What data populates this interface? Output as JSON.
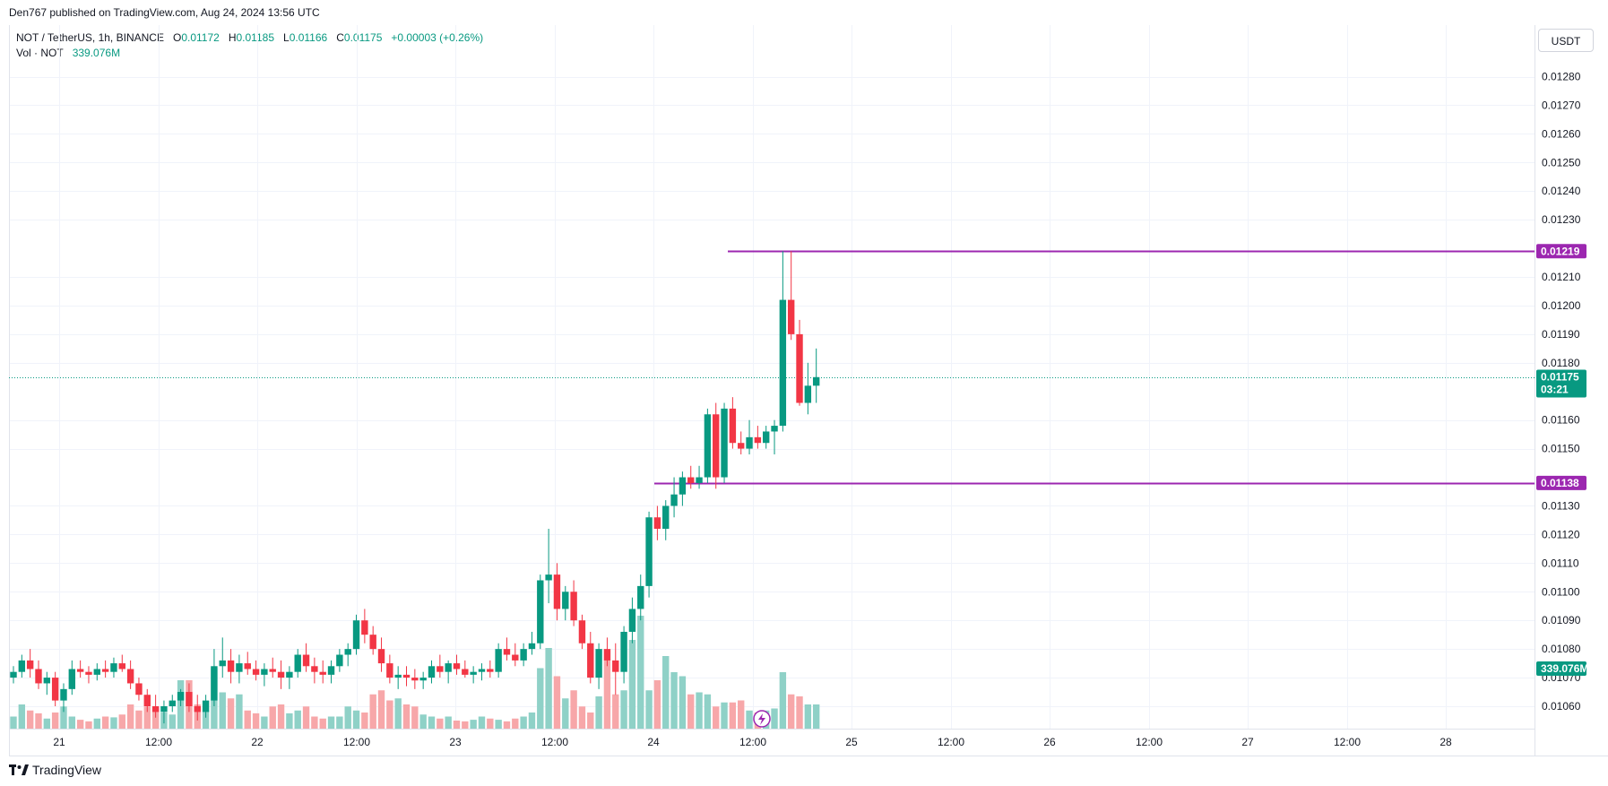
{
  "header": {
    "published": "Den767 published on TradingView.com, Aug 24, 2024 13:56 UTC",
    "symbol": "NOT / TetherUS, 1h, BINANCE",
    "o_label": "O",
    "o_value": "0.01172",
    "h_label": "H",
    "h_value": "0.01185",
    "l_label": "L",
    "l_value": "0.01166",
    "c_label": "C",
    "c_value": "0.01175",
    "change": "+0.00003 (+0.26%)",
    "vol_label": "Vol · NOT",
    "vol_value": "339.076M"
  },
  "currency": "USDT",
  "brand": "TradingView",
  "colors": {
    "up": "#089981",
    "down": "#f23645",
    "vol_up": "#8fd1c7",
    "vol_down": "#f7a7a9",
    "level_line": "#9c27b0",
    "grid": "#f0f3fa",
    "price_line": "#089981"
  },
  "chart_data": {
    "type": "candlestick",
    "symbol": "NOT / TetherUS",
    "interval": "1h",
    "ylim": [
      0.01055,
      0.01285
    ],
    "y_ticks": [
      "0.01280",
      "0.01270",
      "0.01260",
      "0.01250",
      "0.01240",
      "0.01230",
      "0.01210",
      "0.01200",
      "0.01190",
      "0.01180",
      "0.01160",
      "0.01150",
      "0.01130",
      "0.01120",
      "0.01110",
      "0.01100",
      "0.01090",
      "0.01080",
      "0.01070",
      "0.01060"
    ],
    "x_ticks": [
      "21",
      "12:00",
      "22",
      "12:00",
      "23",
      "12:00",
      "24",
      "12:00",
      "25",
      "12:00",
      "26",
      "12:00",
      "27",
      "12:00",
      "28"
    ],
    "price_levels": [
      {
        "value": 0.01219,
        "label": "0.01219"
      },
      {
        "value": 0.01138,
        "label": "0.01138"
      }
    ],
    "last_price": {
      "value": 0.01175,
      "label": "0.01175",
      "countdown": "03:21"
    },
    "last_volume": {
      "label": "339.076M",
      "value": 339.076
    },
    "candles": [
      [
        0.0107,
        0.01074,
        0.01068,
        0.01072
      ],
      [
        0.01072,
        0.01078,
        0.0107,
        0.01076
      ],
      [
        0.01076,
        0.0108,
        0.0107,
        0.01073
      ],
      [
        0.01073,
        0.01076,
        0.01066,
        0.01068
      ],
      [
        0.01068,
        0.01072,
        0.01064,
        0.0107
      ],
      [
        0.0107,
        0.01072,
        0.0106,
        0.01062
      ],
      [
        0.01062,
        0.01068,
        0.01058,
        0.01066
      ],
      [
        0.01066,
        0.01076,
        0.01064,
        0.01073
      ],
      [
        0.01073,
        0.01076,
        0.0107,
        0.01072
      ],
      [
        0.01072,
        0.01074,
        0.01068,
        0.01071
      ],
      [
        0.01071,
        0.01075,
        0.01069,
        0.01073
      ],
      [
        0.01073,
        0.01076,
        0.0107,
        0.01072
      ],
      [
        0.01072,
        0.01077,
        0.0107,
        0.01075
      ],
      [
        0.01075,
        0.01078,
        0.01072,
        0.01073
      ],
      [
        0.01073,
        0.01076,
        0.01066,
        0.01068
      ],
      [
        0.01068,
        0.0107,
        0.01062,
        0.01064
      ],
      [
        0.01064,
        0.01066,
        0.01058,
        0.0106
      ],
      [
        0.0106,
        0.01064,
        0.01056,
        0.01058
      ],
      [
        0.01058,
        0.01062,
        0.01054,
        0.0106
      ],
      [
        0.0106,
        0.01064,
        0.01058,
        0.01062
      ],
      [
        0.01062,
        0.01066,
        0.0106,
        0.01065
      ],
      [
        0.01065,
        0.01068,
        0.01058,
        0.0106
      ],
      [
        0.0106,
        0.01064,
        0.01055,
        0.01058
      ],
      [
        0.01058,
        0.01064,
        0.01056,
        0.01062
      ],
      [
        0.01062,
        0.0108,
        0.0106,
        0.01074
      ],
      [
        0.01074,
        0.01084,
        0.0107,
        0.01076
      ],
      [
        0.01076,
        0.0108,
        0.01068,
        0.01072
      ],
      [
        0.01072,
        0.01078,
        0.01068,
        0.01075
      ],
      [
        0.01075,
        0.01079,
        0.01071,
        0.01073
      ],
      [
        0.01073,
        0.01076,
        0.01069,
        0.01071
      ],
      [
        0.01071,
        0.01075,
        0.01067,
        0.01073
      ],
      [
        0.01073,
        0.01077,
        0.0107,
        0.01072
      ],
      [
        0.01072,
        0.01076,
        0.01066,
        0.0107
      ],
      [
        0.0107,
        0.01074,
        0.01066,
        0.01072
      ],
      [
        0.01072,
        0.0108,
        0.0107,
        0.01078
      ],
      [
        0.01078,
        0.01082,
        0.01072,
        0.01074
      ],
      [
        0.01074,
        0.01077,
        0.01068,
        0.01072
      ],
      [
        0.01072,
        0.01076,
        0.01068,
        0.01071
      ],
      [
        0.01071,
        0.01076,
        0.01068,
        0.01074
      ],
      [
        0.01074,
        0.0108,
        0.01072,
        0.01078
      ],
      [
        0.01078,
        0.01082,
        0.01074,
        0.0108
      ],
      [
        0.0108,
        0.01092,
        0.01078,
        0.0109
      ],
      [
        0.0109,
        0.01094,
        0.01082,
        0.01085
      ],
      [
        0.01085,
        0.01088,
        0.01078,
        0.0108
      ],
      [
        0.0108,
        0.01084,
        0.01072,
        0.01075
      ],
      [
        0.01075,
        0.01078,
        0.01068,
        0.0107
      ],
      [
        0.0107,
        0.01074,
        0.01066,
        0.01071
      ],
      [
        0.01071,
        0.01074,
        0.01067,
        0.0107
      ],
      [
        0.0107,
        0.01073,
        0.01066,
        0.01069
      ],
      [
        0.01069,
        0.01072,
        0.01066,
        0.0107
      ],
      [
        0.0107,
        0.01076,
        0.01068,
        0.01074
      ],
      [
        0.01074,
        0.01078,
        0.0107,
        0.01072
      ],
      [
        0.01072,
        0.01076,
        0.01068,
        0.01075
      ],
      [
        0.01075,
        0.01078,
        0.01071,
        0.01073
      ],
      [
        0.01073,
        0.01076,
        0.0107,
        0.01071
      ],
      [
        0.01071,
        0.01074,
        0.01068,
        0.01072
      ],
      [
        0.01072,
        0.01075,
        0.01069,
        0.01073
      ],
      [
        0.01073,
        0.01076,
        0.0107,
        0.01072
      ],
      [
        0.01072,
        0.01082,
        0.0107,
        0.0108
      ],
      [
        0.0108,
        0.01084,
        0.01076,
        0.01078
      ],
      [
        0.01078,
        0.01082,
        0.01074,
        0.01076
      ],
      [
        0.01076,
        0.01082,
        0.01074,
        0.0108
      ],
      [
        0.0108,
        0.01086,
        0.01078,
        0.01082
      ],
      [
        0.01082,
        0.01106,
        0.0108,
        0.01104
      ],
      [
        0.01104,
        0.01122,
        0.01096,
        0.01106
      ],
      [
        0.01106,
        0.0111,
        0.0109,
        0.01094
      ],
      [
        0.01094,
        0.01102,
        0.0109,
        0.011
      ],
      [
        0.011,
        0.01104,
        0.01088,
        0.0109
      ],
      [
        0.0109,
        0.01092,
        0.0108,
        0.01082
      ],
      [
        0.01082,
        0.01086,
        0.01068,
        0.0107
      ],
      [
        0.0107,
        0.01082,
        0.01066,
        0.0108
      ],
      [
        0.0108,
        0.01084,
        0.01074,
        0.01076
      ],
      [
        0.01076,
        0.01082,
        0.01064,
        0.01072
      ],
      [
        0.01072,
        0.01088,
        0.01068,
        0.01086
      ],
      [
        0.01086,
        0.01098,
        0.01082,
        0.01094
      ],
      [
        0.01094,
        0.01106,
        0.0109,
        0.01102
      ],
      [
        0.01102,
        0.01128,
        0.01098,
        0.01126
      ],
      [
        0.01126,
        0.0113,
        0.01118,
        0.01122
      ],
      [
        0.01122,
        0.01132,
        0.01118,
        0.0113
      ],
      [
        0.0113,
        0.0114,
        0.01126,
        0.01134
      ],
      [
        0.01134,
        0.01142,
        0.0113,
        0.0114
      ],
      [
        0.0114,
        0.01144,
        0.01136,
        0.01138
      ],
      [
        0.01138,
        0.01144,
        0.01136,
        0.0114
      ],
      [
        0.0114,
        0.01164,
        0.01138,
        0.01162
      ],
      [
        0.01162,
        0.01166,
        0.01136,
        0.0114
      ],
      [
        0.0114,
        0.01166,
        0.01138,
        0.01164
      ],
      [
        0.01164,
        0.01168,
        0.0115,
        0.01152
      ],
      [
        0.01152,
        0.01156,
        0.01148,
        0.0115
      ],
      [
        0.0115,
        0.0116,
        0.01148,
        0.01154
      ],
      [
        0.01154,
        0.01158,
        0.0115,
        0.01152
      ],
      [
        0.01152,
        0.01158,
        0.0115,
        0.01156
      ],
      [
        0.01156,
        0.0116,
        0.01148,
        0.01158
      ],
      [
        0.01158,
        0.01219,
        0.01156,
        0.01202
      ],
      [
        0.01202,
        0.01219,
        0.01188,
        0.0119
      ],
      [
        0.0119,
        0.01195,
        0.01165,
        0.01166
      ],
      [
        0.01166,
        0.0118,
        0.01162,
        0.01172
      ],
      [
        0.01172,
        0.01185,
        0.01166,
        0.01175
      ]
    ],
    "volume_relative": [
      0.3,
      0.6,
      0.45,
      0.38,
      0.25,
      0.4,
      0.55,
      0.3,
      0.22,
      0.18,
      0.25,
      0.3,
      0.28,
      0.35,
      0.6,
      0.45,
      0.55,
      0.5,
      0.4,
      0.35,
      1.2,
      1.2,
      0.6,
      0.45,
      1.5,
      0.9,
      0.75,
      0.85,
      0.45,
      0.38,
      0.3,
      0.55,
      0.6,
      0.38,
      0.45,
      0.55,
      0.3,
      0.25,
      0.3,
      0.3,
      0.55,
      0.45,
      0.4,
      0.85,
      0.95,
      0.7,
      0.75,
      0.6,
      0.55,
      0.35,
      0.3,
      0.25,
      0.3,
      0.2,
      0.18,
      0.22,
      0.3,
      0.25,
      0.22,
      0.18,
      0.25,
      0.3,
      0.4,
      1.5,
      2.0,
      1.3,
      0.75,
      0.95,
      0.55,
      0.4,
      0.8,
      1.7,
      0.85,
      0.95,
      2.2,
      2.8,
      0.95,
      1.2,
      1.8,
      1.4,
      1.3,
      0.85,
      0.9,
      0.85,
      0.55,
      0.65,
      0.65,
      0.7,
      0.45,
      0.4,
      0.45,
      0.5,
      1.4,
      0.85,
      0.8,
      0.6,
      0.6
    ]
  }
}
